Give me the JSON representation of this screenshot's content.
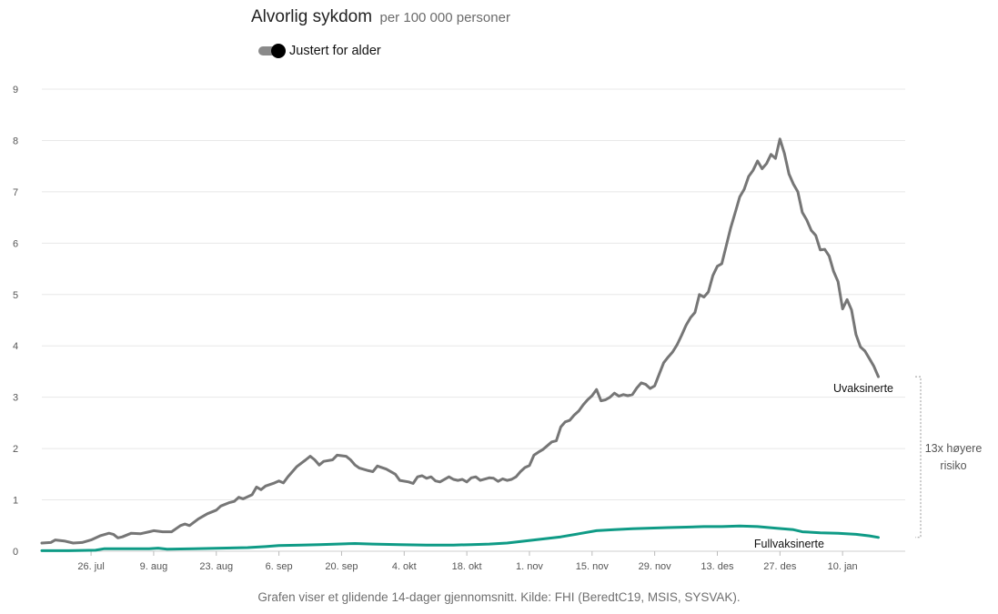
{
  "header": {
    "title": "Alvorlig sykdom",
    "subtitle": "per 100 000 personer",
    "toggle_label": "Justert for alder"
  },
  "caption": "Grafen viser et glidende 14-dager gjennomsnitt. Kilde: FHI (BeredtC19, MSIS, SYSVAK).",
  "annotation": {
    "lines": [
      "13x høyere",
      "risiko"
    ]
  },
  "colors": {
    "unvaccinated": "#767676",
    "vaccinated": "#0f9b86",
    "grid": "#e8e8e8"
  },
  "chart_data": {
    "type": "line",
    "ylim": [
      0,
      9
    ],
    "yticks": [
      0,
      1,
      2,
      3,
      4,
      5,
      6,
      7,
      8,
      9
    ],
    "x_range_days": [
      0,
      193
    ],
    "x_ticks": [
      {
        "day": 11,
        "label": "26. jul"
      },
      {
        "day": 25,
        "label": "9. aug"
      },
      {
        "day": 39,
        "label": "23. aug"
      },
      {
        "day": 53,
        "label": "6. sep"
      },
      {
        "day": 67,
        "label": "20. sep"
      },
      {
        "day": 81,
        "label": "4. okt"
      },
      {
        "day": 95,
        "label": "18. okt"
      },
      {
        "day": 109,
        "label": "1. nov"
      },
      {
        "day": 123,
        "label": "15. nov"
      },
      {
        "day": 137,
        "label": "29. nov"
      },
      {
        "day": 151,
        "label": "13. des"
      },
      {
        "day": 165,
        "label": "27. des"
      },
      {
        "day": 179,
        "label": "10. jan"
      }
    ],
    "series": [
      {
        "name": "Uvaksinerte",
        "color": "#767676",
        "points": [
          [
            0,
            0.16
          ],
          [
            2,
            0.17
          ],
          [
            3,
            0.22
          ],
          [
            5,
            0.2
          ],
          [
            7,
            0.16
          ],
          [
            9,
            0.17
          ],
          [
            11,
            0.22
          ],
          [
            13,
            0.3
          ],
          [
            15,
            0.35
          ],
          [
            16,
            0.33
          ],
          [
            17,
            0.26
          ],
          [
            18,
            0.28
          ],
          [
            20,
            0.35
          ],
          [
            22,
            0.34
          ],
          [
            24,
            0.38
          ],
          [
            25,
            0.4
          ],
          [
            27,
            0.38
          ],
          [
            29,
            0.38
          ],
          [
            31,
            0.5
          ],
          [
            32,
            0.53
          ],
          [
            33,
            0.5
          ],
          [
            35,
            0.63
          ],
          [
            37,
            0.73
          ],
          [
            39,
            0.8
          ],
          [
            40,
            0.88
          ],
          [
            42,
            0.95
          ],
          [
            43,
            0.97
          ],
          [
            44,
            1.05
          ],
          [
            45,
            1.02
          ],
          [
            47,
            1.1
          ],
          [
            48,
            1.25
          ],
          [
            49,
            1.2
          ],
          [
            50,
            1.27
          ],
          [
            52,
            1.33
          ],
          [
            53,
            1.37
          ],
          [
            54,
            1.33
          ],
          [
            55,
            1.45
          ],
          [
            57,
            1.65
          ],
          [
            59,
            1.78
          ],
          [
            60,
            1.85
          ],
          [
            61,
            1.78
          ],
          [
            62,
            1.68
          ],
          [
            63,
            1.75
          ],
          [
            65,
            1.78
          ],
          [
            66,
            1.87
          ],
          [
            68,
            1.85
          ],
          [
            69,
            1.78
          ],
          [
            70,
            1.68
          ],
          [
            71,
            1.62
          ],
          [
            73,
            1.57
          ],
          [
            74,
            1.55
          ],
          [
            75,
            1.66
          ],
          [
            77,
            1.6
          ],
          [
            79,
            1.5
          ],
          [
            80,
            1.38
          ],
          [
            82,
            1.35
          ],
          [
            83,
            1.32
          ],
          [
            84,
            1.45
          ],
          [
            85,
            1.47
          ],
          [
            86,
            1.42
          ],
          [
            87,
            1.45
          ],
          [
            88,
            1.37
          ],
          [
            89,
            1.35
          ],
          [
            91,
            1.45
          ],
          [
            92,
            1.4
          ],
          [
            93,
            1.38
          ],
          [
            94,
            1.4
          ],
          [
            95,
            1.35
          ],
          [
            96,
            1.43
          ],
          [
            97,
            1.45
          ],
          [
            98,
            1.38
          ],
          [
            100,
            1.43
          ],
          [
            101,
            1.42
          ],
          [
            102,
            1.36
          ],
          [
            103,
            1.41
          ],
          [
            104,
            1.38
          ],
          [
            105,
            1.4
          ],
          [
            106,
            1.45
          ],
          [
            107,
            1.55
          ],
          [
            108,
            1.63
          ],
          [
            109,
            1.67
          ],
          [
            110,
            1.87
          ],
          [
            111,
            1.93
          ],
          [
            112,
            1.98
          ],
          [
            114,
            2.13
          ],
          [
            115,
            2.15
          ],
          [
            116,
            2.42
          ],
          [
            117,
            2.52
          ],
          [
            118,
            2.55
          ],
          [
            119,
            2.65
          ],
          [
            120,
            2.73
          ],
          [
            121,
            2.85
          ],
          [
            122,
            2.95
          ],
          [
            123,
            3.03
          ],
          [
            124,
            3.15
          ],
          [
            125,
            2.93
          ],
          [
            126,
            2.95
          ],
          [
            127,
            3.0
          ],
          [
            128,
            3.08
          ],
          [
            129,
            3.02
          ],
          [
            130,
            3.05
          ],
          [
            131,
            3.03
          ],
          [
            132,
            3.05
          ],
          [
            133,
            3.18
          ],
          [
            134,
            3.28
          ],
          [
            135,
            3.25
          ],
          [
            136,
            3.17
          ],
          [
            137,
            3.22
          ],
          [
            138,
            3.45
          ],
          [
            139,
            3.67
          ],
          [
            140,
            3.78
          ],
          [
            141,
            3.88
          ],
          [
            142,
            4.02
          ],
          [
            143,
            4.2
          ],
          [
            144,
            4.4
          ],
          [
            145,
            4.55
          ],
          [
            146,
            4.65
          ],
          [
            147,
            5.0
          ],
          [
            148,
            4.95
          ],
          [
            149,
            5.05
          ],
          [
            150,
            5.37
          ],
          [
            151,
            5.55
          ],
          [
            152,
            5.6
          ],
          [
            153,
            5.95
          ],
          [
            154,
            6.3
          ],
          [
            155,
            6.6
          ],
          [
            156,
            6.9
          ],
          [
            157,
            7.05
          ],
          [
            158,
            7.3
          ],
          [
            159,
            7.42
          ],
          [
            160,
            7.6
          ],
          [
            161,
            7.45
          ],
          [
            162,
            7.55
          ],
          [
            163,
            7.73
          ],
          [
            164,
            7.65
          ],
          [
            165,
            8.03
          ],
          [
            166,
            7.75
          ],
          [
            167,
            7.35
          ],
          [
            168,
            7.15
          ],
          [
            169,
            7.0
          ],
          [
            170,
            6.6
          ],
          [
            171,
            6.45
          ],
          [
            172,
            6.25
          ],
          [
            173,
            6.15
          ],
          [
            174,
            5.87
          ],
          [
            175,
            5.88
          ],
          [
            176,
            5.75
          ],
          [
            177,
            5.45
          ],
          [
            178,
            5.25
          ],
          [
            179,
            4.72
          ],
          [
            180,
            4.9
          ],
          [
            181,
            4.7
          ],
          [
            182,
            4.22
          ],
          [
            183,
            3.98
          ],
          [
            184,
            3.9
          ],
          [
            185,
            3.75
          ],
          [
            186,
            3.6
          ],
          [
            187,
            3.4
          ]
        ]
      },
      {
        "name": "Fullvaksinerte",
        "color": "#0f9b86",
        "points": [
          [
            0,
            0.01
          ],
          [
            6,
            0.01
          ],
          [
            12,
            0.02
          ],
          [
            14,
            0.05
          ],
          [
            18,
            0.05
          ],
          [
            24,
            0.05
          ],
          [
            26,
            0.06
          ],
          [
            28,
            0.04
          ],
          [
            34,
            0.05
          ],
          [
            40,
            0.06
          ],
          [
            46,
            0.07
          ],
          [
            50,
            0.09
          ],
          [
            53,
            0.11
          ],
          [
            58,
            0.12
          ],
          [
            62,
            0.13
          ],
          [
            66,
            0.14
          ],
          [
            70,
            0.15
          ],
          [
            74,
            0.14
          ],
          [
            80,
            0.13
          ],
          [
            86,
            0.12
          ],
          [
            92,
            0.12
          ],
          [
            96,
            0.13
          ],
          [
            100,
            0.14
          ],
          [
            104,
            0.16
          ],
          [
            108,
            0.2
          ],
          [
            112,
            0.24
          ],
          [
            116,
            0.28
          ],
          [
            120,
            0.34
          ],
          [
            124,
            0.4
          ],
          [
            128,
            0.42
          ],
          [
            132,
            0.44
          ],
          [
            136,
            0.45
          ],
          [
            140,
            0.46
          ],
          [
            144,
            0.47
          ],
          [
            148,
            0.48
          ],
          [
            152,
            0.48
          ],
          [
            156,
            0.49
          ],
          [
            160,
            0.48
          ],
          [
            164,
            0.45
          ],
          [
            168,
            0.42
          ],
          [
            170,
            0.38
          ],
          [
            174,
            0.36
          ],
          [
            178,
            0.35
          ],
          [
            182,
            0.33
          ],
          [
            185,
            0.3
          ],
          [
            187,
            0.27
          ]
        ]
      }
    ]
  }
}
